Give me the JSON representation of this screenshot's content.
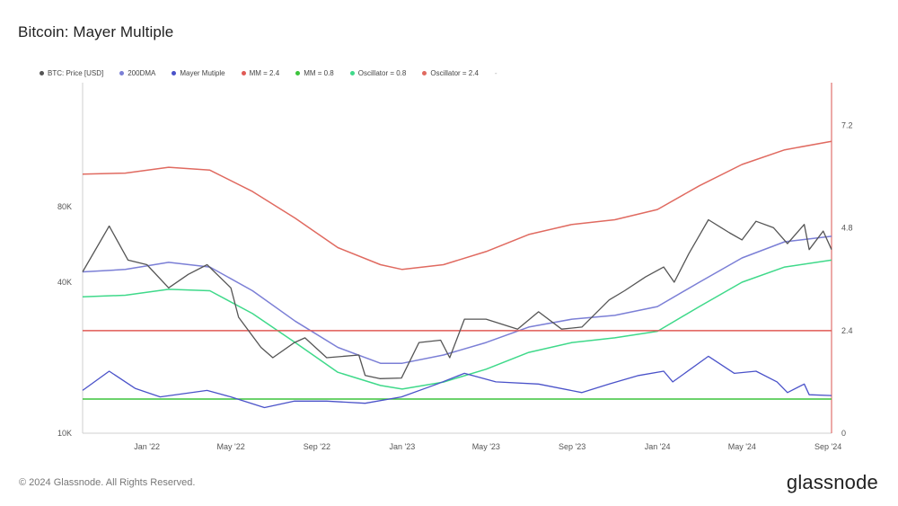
{
  "title": "Bitcoin: Mayer Multiple",
  "footer": {
    "copyright": "© 2024 Glassnode. All Rights Reserved.",
    "brand": "glassnode"
  },
  "legend": {
    "items": [
      {
        "label": "BTC: Price [USD]",
        "color": "#555555"
      },
      {
        "label": "200DMA",
        "color": "#7b7fd6"
      },
      {
        "label": "Mayer Mutiple",
        "color": "#4a52c9"
      },
      {
        "label": "MM = 2.4",
        "color": "#e05a55"
      },
      {
        "label": "MM = 0.8",
        "color": "#3cc43c"
      },
      {
        "label": "Oscillator = 0.8",
        "color": "#3fd98a"
      },
      {
        "label": "Oscillator = 2.4",
        "color": "#e06a60"
      }
    ],
    "extra": "-"
  },
  "chart_data": {
    "type": "line",
    "title": "Bitcoin: Mayer Multiple",
    "x_tick_labels": [
      "Jan '22",
      "May '22",
      "Sep '22",
      "Jan '23",
      "May '23",
      "Sep '23",
      "Jan '24",
      "May '24",
      "Sep '24"
    ],
    "left_axis": {
      "scale": "log",
      "tick_labels": [
        "10K",
        "40K",
        "80K"
      ],
      "ticks": [
        10000,
        40000,
        80000
      ],
      "range": [
        10000,
        250000
      ]
    },
    "right_axis": {
      "scale": "linear",
      "tick_labels": [
        "0",
        "2.4",
        "4.8",
        "7.2"
      ],
      "ticks": [
        0,
        2.4,
        4.8,
        7.2
      ],
      "range": [
        0,
        8.2
      ]
    },
    "grid": false,
    "legend_position": "top-left",
    "series": [
      {
        "name": "BTC: Price [USD]",
        "axis": "left",
        "color": "#555555",
        "x": [
          "2021-10-01",
          "2021-11-08",
          "2021-12-05",
          "2022-01-01",
          "2022-02-01",
          "2022-03-01",
          "2022-03-28",
          "2022-05-01",
          "2022-05-12",
          "2022-06-13",
          "2022-06-30",
          "2022-07-31",
          "2022-08-15",
          "2022-09-15",
          "2022-10-31",
          "2022-11-09",
          "2022-11-30",
          "2022-12-31",
          "2023-01-25",
          "2023-02-25",
          "2023-03-10",
          "2023-03-31",
          "2023-05-01",
          "2023-06-15",
          "2023-07-15",
          "2023-08-17",
          "2023-09-15",
          "2023-10-24",
          "2023-11-15",
          "2023-12-15",
          "2024-01-10",
          "2024-01-25",
          "2024-02-15",
          "2024-03-14",
          "2024-04-13",
          "2024-05-01",
          "2024-05-21",
          "2024-06-15",
          "2024-07-05",
          "2024-07-29",
          "2024-08-05",
          "2024-08-25",
          "2024-09-06"
        ],
        "values": [
          44000,
          67000,
          49000,
          47000,
          38000,
          43000,
          47000,
          38000,
          29000,
          22000,
          20000,
          23000,
          24000,
          20000,
          20500,
          17000,
          16500,
          16600,
          23000,
          23500,
          20000,
          28500,
          28500,
          26000,
          30500,
          26000,
          26500,
          34000,
          37000,
          42000,
          46000,
          40000,
          52000,
          71000,
          63000,
          59000,
          70000,
          66000,
          57000,
          68000,
          54000,
          64000,
          54000
        ]
      },
      {
        "name": "200DMA",
        "axis": "left",
        "color": "#7b7fd6",
        "x": [
          "2021-10-01",
          "2021-12-01",
          "2022-02-01",
          "2022-04-01",
          "2022-06-01",
          "2022-08-01",
          "2022-10-01",
          "2022-12-01",
          "2023-01-01",
          "2023-03-01",
          "2023-05-01",
          "2023-07-01",
          "2023-09-01",
          "2023-11-01",
          "2024-01-01",
          "2024-03-01",
          "2024-05-01",
          "2024-07-01",
          "2024-09-06"
        ],
        "values": [
          44000,
          45000,
          48000,
          46000,
          37000,
          28000,
          22000,
          19000,
          19000,
          20500,
          23000,
          26500,
          28500,
          29500,
          32000,
          40000,
          50000,
          58000,
          61000
        ]
      },
      {
        "name": "Mayer Mutiple",
        "axis": "right",
        "color": "#4a52c9",
        "x": [
          "2021-10-01",
          "2021-11-08",
          "2021-12-15",
          "2022-01-20",
          "2022-03-28",
          "2022-05-01",
          "2022-06-18",
          "2022-07-31",
          "2022-09-15",
          "2022-11-09",
          "2022-12-31",
          "2023-02-20",
          "2023-03-31",
          "2023-05-15",
          "2023-07-15",
          "2023-09-15",
          "2023-10-24",
          "2023-12-05",
          "2024-01-10",
          "2024-01-23",
          "2024-03-14",
          "2024-04-20",
          "2024-05-21",
          "2024-06-20",
          "2024-07-05",
          "2024-07-29",
          "2024-08-05",
          "2024-09-06"
        ],
        "values": [
          1.0,
          1.45,
          1.05,
          0.85,
          1.0,
          0.85,
          0.6,
          0.75,
          0.75,
          0.7,
          0.85,
          1.15,
          1.4,
          1.2,
          1.15,
          0.95,
          1.15,
          1.35,
          1.45,
          1.2,
          1.8,
          1.4,
          1.45,
          1.2,
          0.95,
          1.15,
          0.9,
          0.88
        ]
      },
      {
        "name": "MM = 2.4",
        "axis": "right",
        "color": "#e05a55",
        "x": [
          "2021-10-01",
          "2024-09-06"
        ],
        "values": [
          2.4,
          2.4
        ]
      },
      {
        "name": "MM = 0.8",
        "axis": "right",
        "color": "#3cc43c",
        "x": [
          "2021-10-01",
          "2024-09-06"
        ],
        "values": [
          0.8,
          0.8
        ]
      },
      {
        "name": "Oscillator = 0.8",
        "axis": "left",
        "color": "#3fd98a",
        "x": [
          "2021-10-01",
          "2021-12-01",
          "2022-02-01",
          "2022-04-01",
          "2022-06-01",
          "2022-08-01",
          "2022-10-01",
          "2022-12-01",
          "2023-01-01",
          "2023-03-01",
          "2023-05-01",
          "2023-07-01",
          "2023-09-01",
          "2023-11-01",
          "2024-01-01",
          "2024-03-01",
          "2024-05-01",
          "2024-07-01",
          "2024-09-06"
        ],
        "values": [
          35000,
          35500,
          37500,
          37000,
          30000,
          23000,
          17500,
          15500,
          15000,
          16000,
          18000,
          21000,
          23000,
          24000,
          25500,
          32000,
          40000,
          46000,
          49000
        ]
      },
      {
        "name": "Oscillator = 2.4",
        "axis": "left",
        "color": "#e06a60",
        "x": [
          "2021-10-01",
          "2021-12-01",
          "2022-02-01",
          "2022-04-01",
          "2022-06-01",
          "2022-08-01",
          "2022-10-01",
          "2022-12-01",
          "2023-01-01",
          "2023-03-01",
          "2023-05-01",
          "2023-07-01",
          "2023-09-01",
          "2023-11-01",
          "2024-01-01",
          "2024-03-01",
          "2024-05-01",
          "2024-07-01",
          "2024-09-06"
        ],
        "values": [
          108000,
          109000,
          115000,
          112000,
          92000,
          72000,
          55000,
          47000,
          45000,
          47000,
          53000,
          62000,
          68000,
          71000,
          78000,
          97000,
          118000,
          135000,
          146000
        ]
      }
    ]
  }
}
